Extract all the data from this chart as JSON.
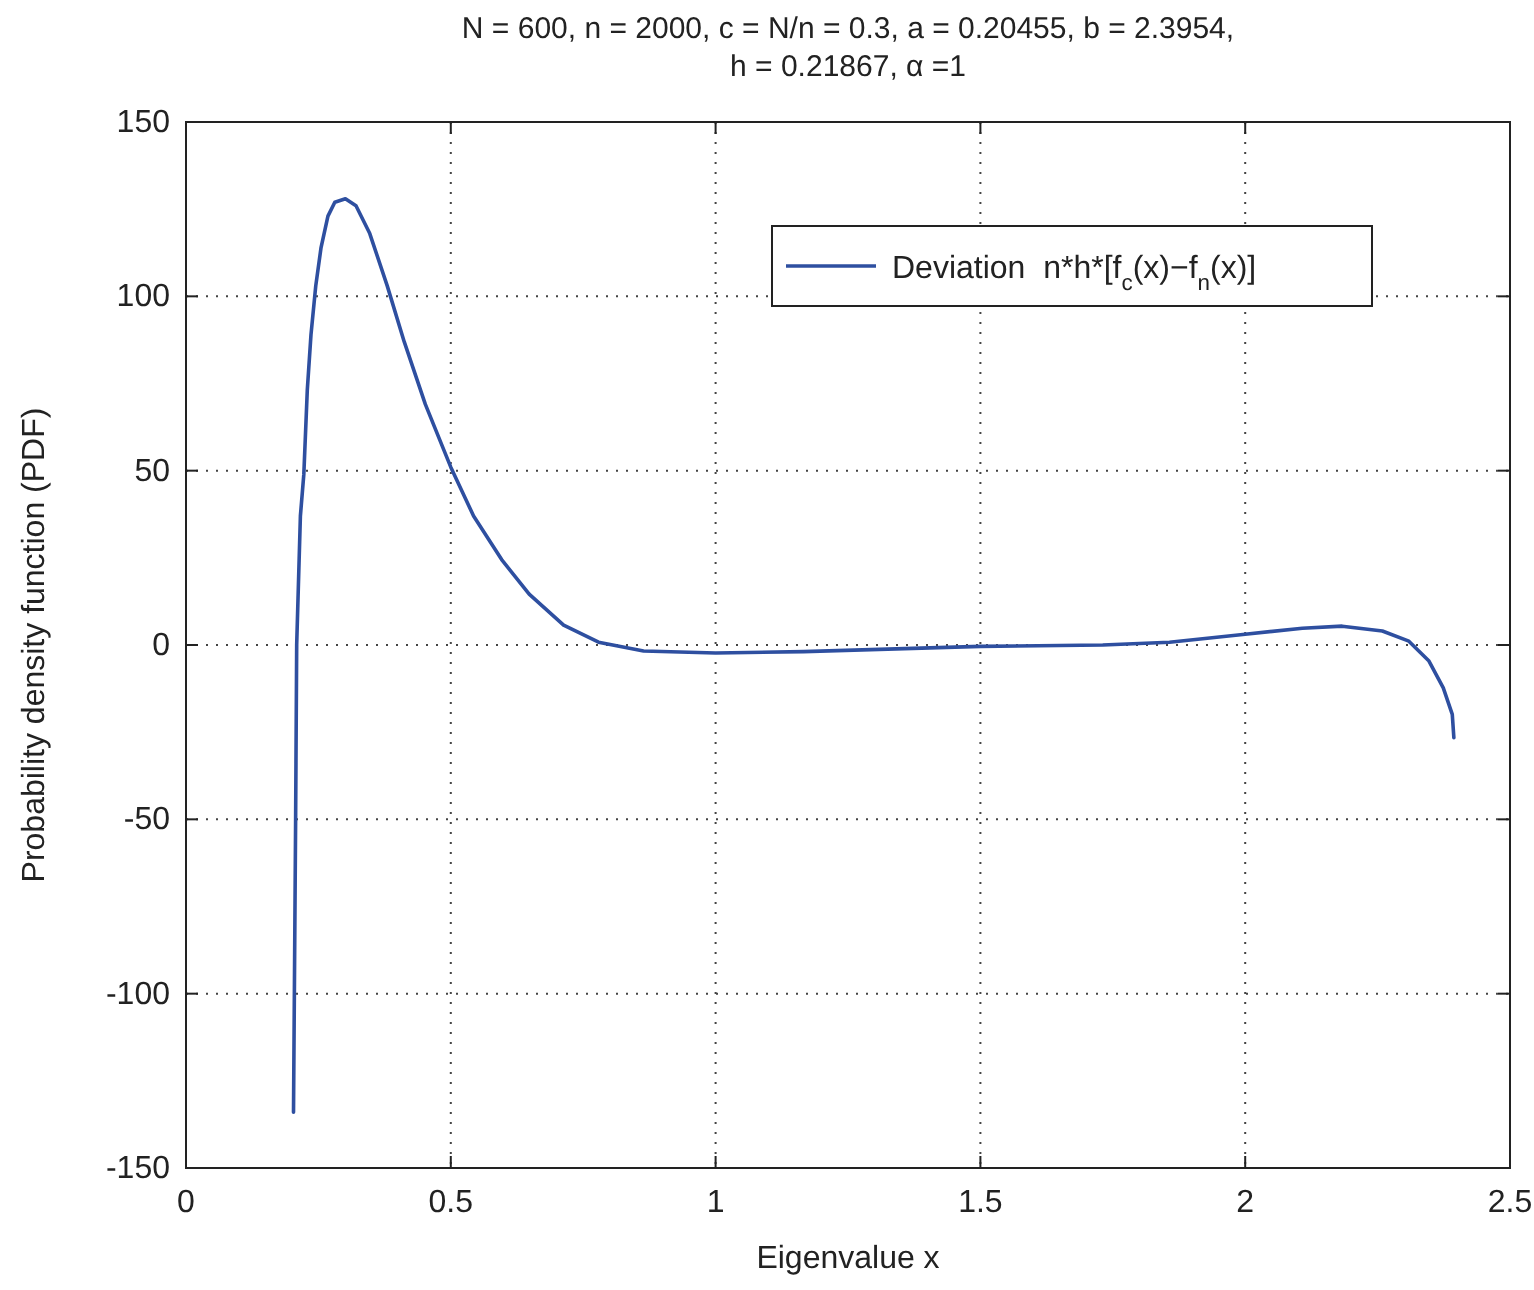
{
  "chart_data": {
    "type": "line",
    "title": "N = 600, n = 2000, c = N/n = 0.3, a = 0.20455, b = 2.3954,\nh = 0.21867, α =1",
    "xlabel": "Eigenvalue x",
    "ylabel": "Probability density function (PDF)",
    "xlim": [
      0,
      2.5
    ],
    "ylim": [
      -150,
      150
    ],
    "xticks": [
      0,
      0.5,
      1,
      1.5,
      2,
      2.5
    ],
    "yticks": [
      -150,
      -100,
      -50,
      0,
      50,
      100,
      150
    ],
    "grid": true,
    "legend": "top right",
    "series": [
      {
        "name": "Deviation  n*h*[f$_{c}$(x)−f$_{n}$(x)]",
        "color": "#2e4fa0",
        "x": [
          0.203,
          0.207,
          0.209,
          0.216,
          0.2225,
          0.229,
          0.236,
          0.245,
          0.255,
          0.268,
          0.281,
          0.301,
          0.321,
          0.347,
          0.38,
          0.412,
          0.452,
          0.5,
          0.543,
          0.596,
          0.648,
          0.713,
          0.779,
          0.864,
          1.0,
          1.166,
          1.5,
          1.731,
          1.857,
          2.0,
          2.108,
          2.183,
          2.259,
          2.309,
          2.347,
          2.374,
          2.391,
          2.394
        ],
        "values": [
          -134,
          -50,
          0,
          37,
          49,
          73,
          89,
          103,
          114,
          123,
          127,
          128,
          126,
          118,
          103,
          87,
          69,
          51,
          37,
          24.5,
          14.6,
          5.7,
          0.8,
          -1.7,
          -2.3,
          -1.9,
          -0.4,
          0,
          0.8,
          3.1,
          4.8,
          5.4,
          4,
          1.1,
          -4.6,
          -12.3,
          -19.9,
          -26.6
        ]
      }
    ]
  }
}
